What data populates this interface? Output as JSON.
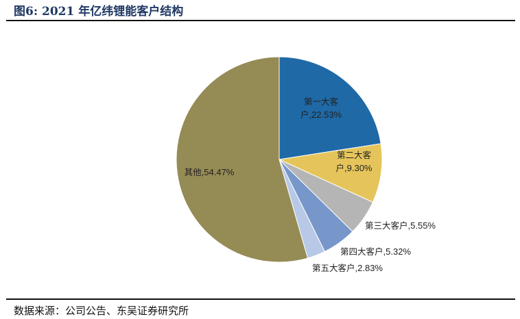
{
  "title": "图6:  2021 年亿纬锂能客户结构",
  "source": "数据来源：公司公告、东吴证券研究所",
  "chart_data": {
    "type": "pie",
    "title": "2021 年亿纬锂能客户结构",
    "start": "12 o'clock, clockwise",
    "slices": [
      {
        "name": "第一大客户",
        "value": 22.53,
        "label": "22.53%",
        "color": "#1f69a6"
      },
      {
        "name": "第二大客户",
        "value": 9.3,
        "label": "9.30%",
        "color": "#e5c55b"
      },
      {
        "name": "第三大客户",
        "value": 5.55,
        "label": "5.55%",
        "color": "#b5b5b5"
      },
      {
        "name": "第四大客户",
        "value": 5.32,
        "label": "5.32%",
        "color": "#7797cb"
      },
      {
        "name": "第五大客户",
        "value": 2.83,
        "label": "2.83%",
        "color": "#b7c9e6"
      },
      {
        "name": "其他",
        "value": 54.47,
        "label": "54.47%",
        "color": "#958b55"
      }
    ]
  }
}
